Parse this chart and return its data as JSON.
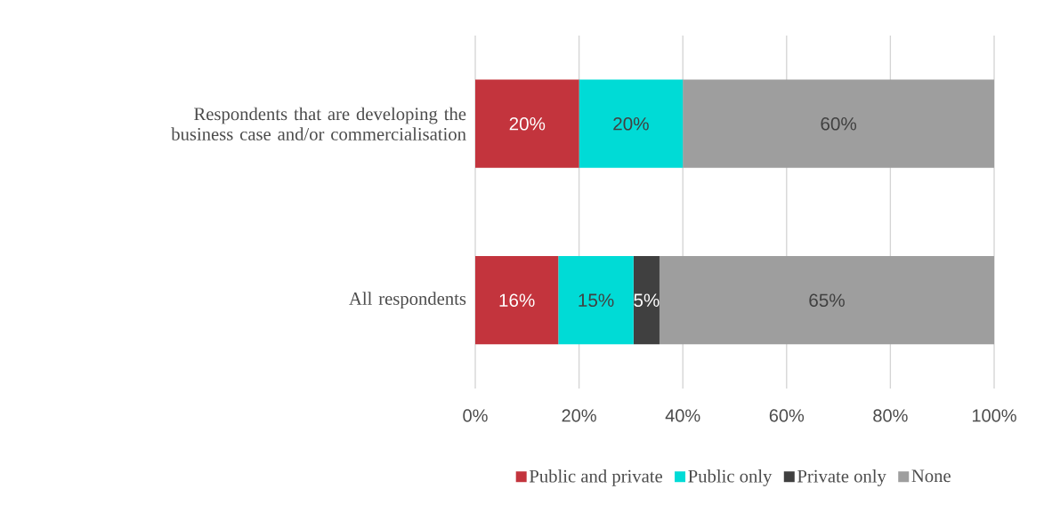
{
  "chart_data": {
    "type": "bar",
    "orientation": "horizontal",
    "stacked": true,
    "categories": [
      "Respondents that are developing the business case and/or commercialisation",
      "All respondents"
    ],
    "series": [
      {
        "name": "Public and private",
        "color": "#c3343d",
        "values": [
          20,
          16
        ],
        "value_labels": [
          "20%",
          "16%"
        ]
      },
      {
        "name": "Public only",
        "color": "#00dbd6",
        "values": [
          20,
          14.5
        ],
        "value_labels": [
          "20%",
          "15%"
        ]
      },
      {
        "name": "Private only",
        "color": "#404040",
        "values": [
          0,
          5
        ],
        "value_labels": [
          null,
          "5%"
        ]
      },
      {
        "name": "None",
        "color": "#9e9e9e",
        "values": [
          60,
          64.5
        ],
        "value_labels": [
          "60%",
          "65%"
        ]
      }
    ],
    "xlim": [
      0,
      100
    ],
    "xticks": [
      {
        "value": 0,
        "label": "0%"
      },
      {
        "value": 20,
        "label": "20%"
      },
      {
        "value": 40,
        "label": "40%"
      },
      {
        "value": 60,
        "label": "60%"
      },
      {
        "value": 80,
        "label": "80%"
      },
      {
        "value": 100,
        "label": "100%"
      }
    ],
    "grid": "x",
    "legend": "bottom"
  }
}
